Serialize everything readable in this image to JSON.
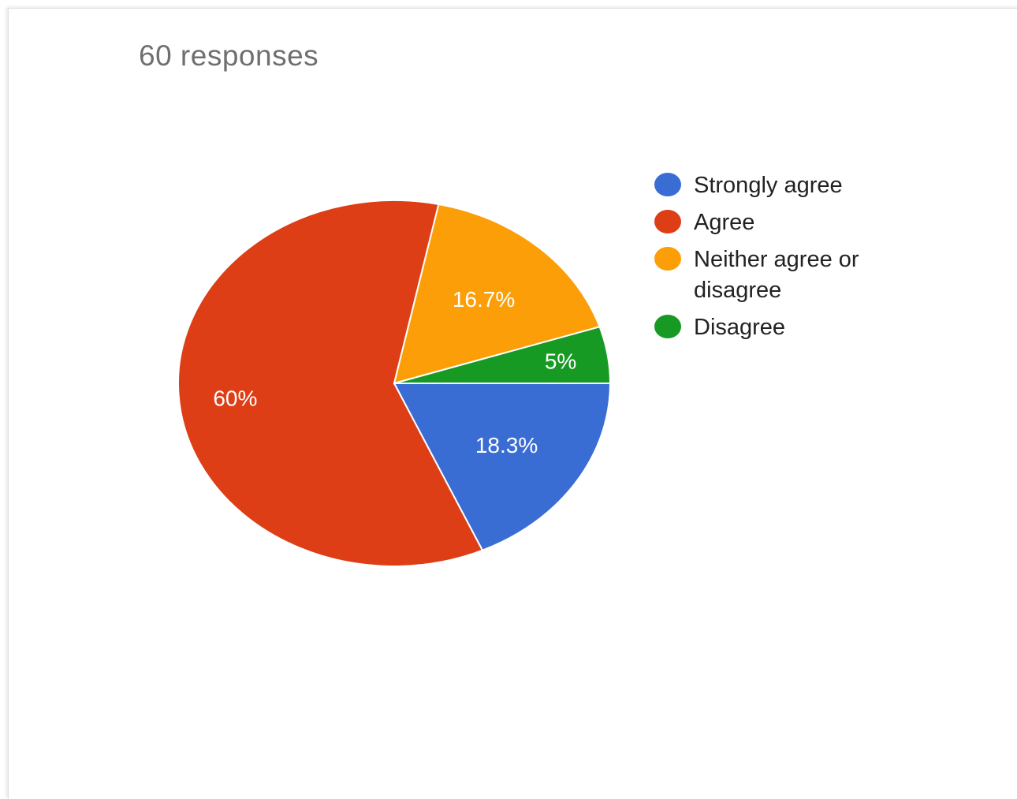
{
  "header": {
    "responses_text": "60 responses"
  },
  "chart_data": {
    "type": "pie",
    "categories": [
      "Strongly agree",
      "Agree",
      "Neither agree or disagree",
      "Disagree"
    ],
    "values": [
      18.3,
      60,
      16.7,
      5
    ],
    "labels": [
      "18.3%",
      "60%",
      "16.7%",
      "5%"
    ],
    "colors": [
      "#3a6dd4",
      "#dd3e16",
      "#fb9e08",
      "#179a24"
    ],
    "legend_position": "right"
  },
  "legend": {
    "items": [
      {
        "label": "Strongly agree",
        "color": "#3a6dd4"
      },
      {
        "label": "Agree",
        "color": "#dd3e16"
      },
      {
        "label": "Neither agree or disagree",
        "color": "#fb9e08"
      },
      {
        "label": "Disagree",
        "color": "#179a24"
      }
    ]
  }
}
